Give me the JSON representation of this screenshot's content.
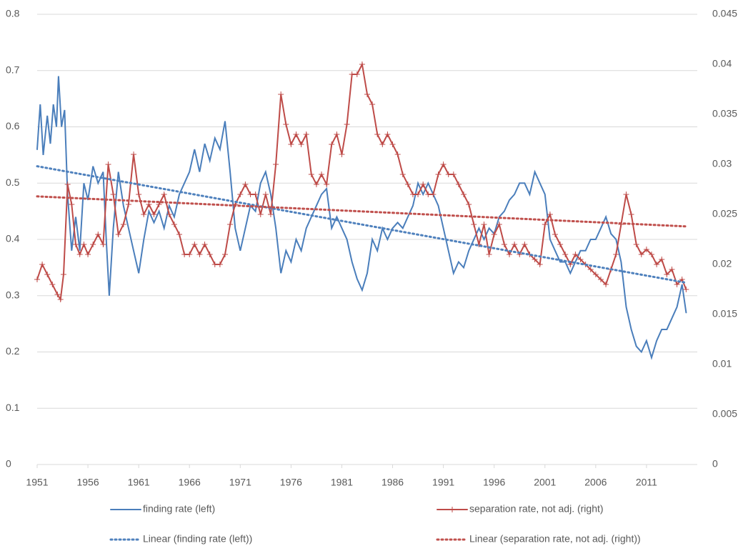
{
  "chart_data": {
    "type": "line",
    "xlim": [
      1951,
      2016
    ],
    "xticks": [
      1951,
      1956,
      1961,
      1966,
      1971,
      1976,
      1981,
      1986,
      1991,
      1996,
      2001,
      2006,
      2011
    ],
    "ylim": [
      0,
      0.8
    ],
    "yticks": [
      0,
      0.1,
      0.2,
      0.3,
      0.4,
      0.5,
      0.6,
      0.7,
      0.8
    ],
    "y2lim": [
      0,
      0.045
    ],
    "y2ticks": [
      0,
      0.005,
      0.01,
      0.015,
      0.02,
      0.025,
      0.03,
      0.035,
      0.04,
      0.045
    ],
    "grid": true,
    "legend": "bottom",
    "series": [
      {
        "name": "finding rate (left)",
        "color": "#4a7ebb",
        "axis": "y",
        "dash": false,
        "marker": false,
        "x": [
          1951,
          1951.3,
          1951.6,
          1952,
          1952.3,
          1952.6,
          1952.9,
          1953.1,
          1953.4,
          1953.7,
          1954,
          1954.4,
          1954.8,
          1955.2,
          1955.6,
          1956,
          1956.5,
          1957,
          1957.5,
          1957.8,
          1958.1,
          1958.5,
          1959,
          1959.5,
          1960,
          1960.5,
          1961,
          1961.5,
          1962,
          1962.5,
          1963,
          1963.5,
          1964,
          1964.5,
          1965,
          1965.5,
          1966,
          1966.5,
          1967,
          1967.5,
          1968,
          1968.5,
          1969,
          1969.5,
          1970,
          1970.5,
          1971,
          1971.5,
          1972,
          1972.5,
          1973,
          1973.5,
          1974,
          1974.5,
          1975,
          1975.5,
          1976,
          1976.5,
          1977,
          1977.5,
          1978,
          1978.5,
          1979,
          1979.5,
          1980,
          1980.5,
          1981,
          1981.5,
          1982,
          1982.5,
          1983,
          1983.5,
          1984,
          1984.5,
          1985,
          1985.5,
          1986,
          1986.5,
          1987,
          1987.5,
          1988,
          1988.5,
          1989,
          1989.5,
          1990,
          1990.5,
          1991,
          1991.5,
          1992,
          1992.5,
          1993,
          1993.5,
          1994,
          1994.5,
          1995,
          1995.5,
          1996,
          1996.5,
          1997,
          1997.5,
          1998,
          1998.5,
          1999,
          1999.5,
          2000,
          2000.5,
          2001,
          2001.5,
          2002,
          2002.5,
          2003,
          2003.5,
          2004,
          2004.5,
          2005,
          2005.5,
          2006,
          2006.5,
          2007,
          2007.5,
          2008,
          2008.5,
          2009,
          2009.5,
          2010,
          2010.5,
          2011,
          2011.5,
          2012,
          2012.5,
          2013,
          2013.5,
          2014,
          2014.5,
          2014.9
        ],
        "values": [
          0.56,
          0.64,
          0.55,
          0.62,
          0.57,
          0.64,
          0.6,
          0.69,
          0.6,
          0.63,
          0.48,
          0.38,
          0.44,
          0.38,
          0.5,
          0.47,
          0.53,
          0.5,
          0.52,
          0.4,
          0.3,
          0.42,
          0.52,
          0.46,
          0.42,
          0.38,
          0.34,
          0.4,
          0.45,
          0.43,
          0.45,
          0.42,
          0.46,
          0.44,
          0.48,
          0.5,
          0.52,
          0.56,
          0.52,
          0.57,
          0.54,
          0.58,
          0.56,
          0.61,
          0.52,
          0.42,
          0.38,
          0.42,
          0.46,
          0.45,
          0.5,
          0.52,
          0.48,
          0.42,
          0.34,
          0.38,
          0.36,
          0.4,
          0.38,
          0.42,
          0.44,
          0.46,
          0.48,
          0.49,
          0.42,
          0.44,
          0.42,
          0.4,
          0.36,
          0.33,
          0.31,
          0.34,
          0.4,
          0.38,
          0.42,
          0.4,
          0.42,
          0.43,
          0.42,
          0.44,
          0.46,
          0.5,
          0.48,
          0.5,
          0.48,
          0.46,
          0.42,
          0.38,
          0.34,
          0.36,
          0.35,
          0.38,
          0.4,
          0.42,
          0.4,
          0.42,
          0.41,
          0.44,
          0.45,
          0.47,
          0.48,
          0.5,
          0.5,
          0.48,
          0.52,
          0.5,
          0.48,
          0.4,
          0.38,
          0.36,
          0.36,
          0.34,
          0.36,
          0.38,
          0.38,
          0.4,
          0.4,
          0.42,
          0.44,
          0.41,
          0.4,
          0.36,
          0.28,
          0.24,
          0.21,
          0.2,
          0.22,
          0.19,
          0.22,
          0.24,
          0.24,
          0.26,
          0.28,
          0.32,
          0.27
        ]
      },
      {
        "name": "separation rate, not adj. (right)",
        "color": "#be4b48",
        "axis": "y2",
        "dash": false,
        "marker": true,
        "x": [
          1951,
          1951.5,
          1952,
          1952.5,
          1953,
          1953.3,
          1953.6,
          1954,
          1954.4,
          1954.8,
          1955.2,
          1955.6,
          1956,
          1956.5,
          1957,
          1957.5,
          1958,
          1958.5,
          1959,
          1959.5,
          1960,
          1960.5,
          1961,
          1961.5,
          1962,
          1962.5,
          1963,
          1963.5,
          1964,
          1964.5,
          1965,
          1965.5,
          1966,
          1966.5,
          1967,
          1967.5,
          1968,
          1968.5,
          1969,
          1969.5,
          1970,
          1970.5,
          1971,
          1971.5,
          1972,
          1972.5,
          1973,
          1973.5,
          1974,
          1974.5,
          1975,
          1975.5,
          1976,
          1976.5,
          1977,
          1977.5,
          1978,
          1978.5,
          1979,
          1979.5,
          1980,
          1980.5,
          1981,
          1981.5,
          1982,
          1982.5,
          1983,
          1983.5,
          1984,
          1984.5,
          1985,
          1985.5,
          1986,
          1986.5,
          1987,
          1987.5,
          1988,
          1988.5,
          1989,
          1989.5,
          1990,
          1990.5,
          1991,
          1991.5,
          1992,
          1992.5,
          1993,
          1993.5,
          1994,
          1994.5,
          1995,
          1995.5,
          1996,
          1996.5,
          1997,
          1997.5,
          1998,
          1998.5,
          1999,
          1999.5,
          2000,
          2000.5,
          2001,
          2001.5,
          2002,
          2002.5,
          2003,
          2003.5,
          2004,
          2004.5,
          2005,
          2005.5,
          2006,
          2006.5,
          2007,
          2007.5,
          2008,
          2008.5,
          2009,
          2009.5,
          2010,
          2010.5,
          2011,
          2011.5,
          2012,
          2012.5,
          2013,
          2013.5,
          2014,
          2014.5,
          2014.9
        ],
        "values": [
          0.0185,
          0.02,
          0.019,
          0.018,
          0.017,
          0.0165,
          0.019,
          0.028,
          0.026,
          0.022,
          0.021,
          0.022,
          0.021,
          0.022,
          0.023,
          0.022,
          0.03,
          0.027,
          0.023,
          0.024,
          0.026,
          0.031,
          0.027,
          0.025,
          0.026,
          0.025,
          0.026,
          0.027,
          0.025,
          0.024,
          0.023,
          0.021,
          0.021,
          0.022,
          0.021,
          0.022,
          0.021,
          0.02,
          0.02,
          0.021,
          0.024,
          0.026,
          0.027,
          0.028,
          0.027,
          0.027,
          0.025,
          0.027,
          0.025,
          0.03,
          0.037,
          0.034,
          0.032,
          0.033,
          0.032,
          0.033,
          0.029,
          0.028,
          0.029,
          0.028,
          0.032,
          0.033,
          0.031,
          0.034,
          0.039,
          0.039,
          0.04,
          0.037,
          0.036,
          0.033,
          0.032,
          0.033,
          0.032,
          0.031,
          0.029,
          0.028,
          0.027,
          0.027,
          0.028,
          0.027,
          0.027,
          0.029,
          0.03,
          0.029,
          0.029,
          0.028,
          0.027,
          0.026,
          0.024,
          0.022,
          0.024,
          0.021,
          0.023,
          0.024,
          0.022,
          0.021,
          0.022,
          0.021,
          0.022,
          0.021,
          0.0205,
          0.02,
          0.024,
          0.025,
          0.023,
          0.022,
          0.021,
          0.02,
          0.021,
          0.0205,
          0.02,
          0.0195,
          0.019,
          0.0185,
          0.018,
          0.0195,
          0.021,
          0.024,
          0.027,
          0.025,
          0.022,
          0.021,
          0.0215,
          0.021,
          0.02,
          0.0205,
          0.019,
          0.0195,
          0.018,
          0.0185,
          0.0175
        ]
      },
      {
        "name": "Linear (finding rate (left))",
        "color": "#4f81bd",
        "axis": "y",
        "dash": true,
        "marker": false,
        "x": [
          1951,
          2014.9
        ],
        "values": [
          0.53,
          0.323
        ]
      },
      {
        "name": "Linear (separation rate, not adj. (right))",
        "color": "#c0504d",
        "axis": "y2",
        "dash": true,
        "marker": false,
        "x": [
          1951,
          2014.9
        ],
        "values": [
          0.0268,
          0.0238
        ]
      }
    ]
  }
}
